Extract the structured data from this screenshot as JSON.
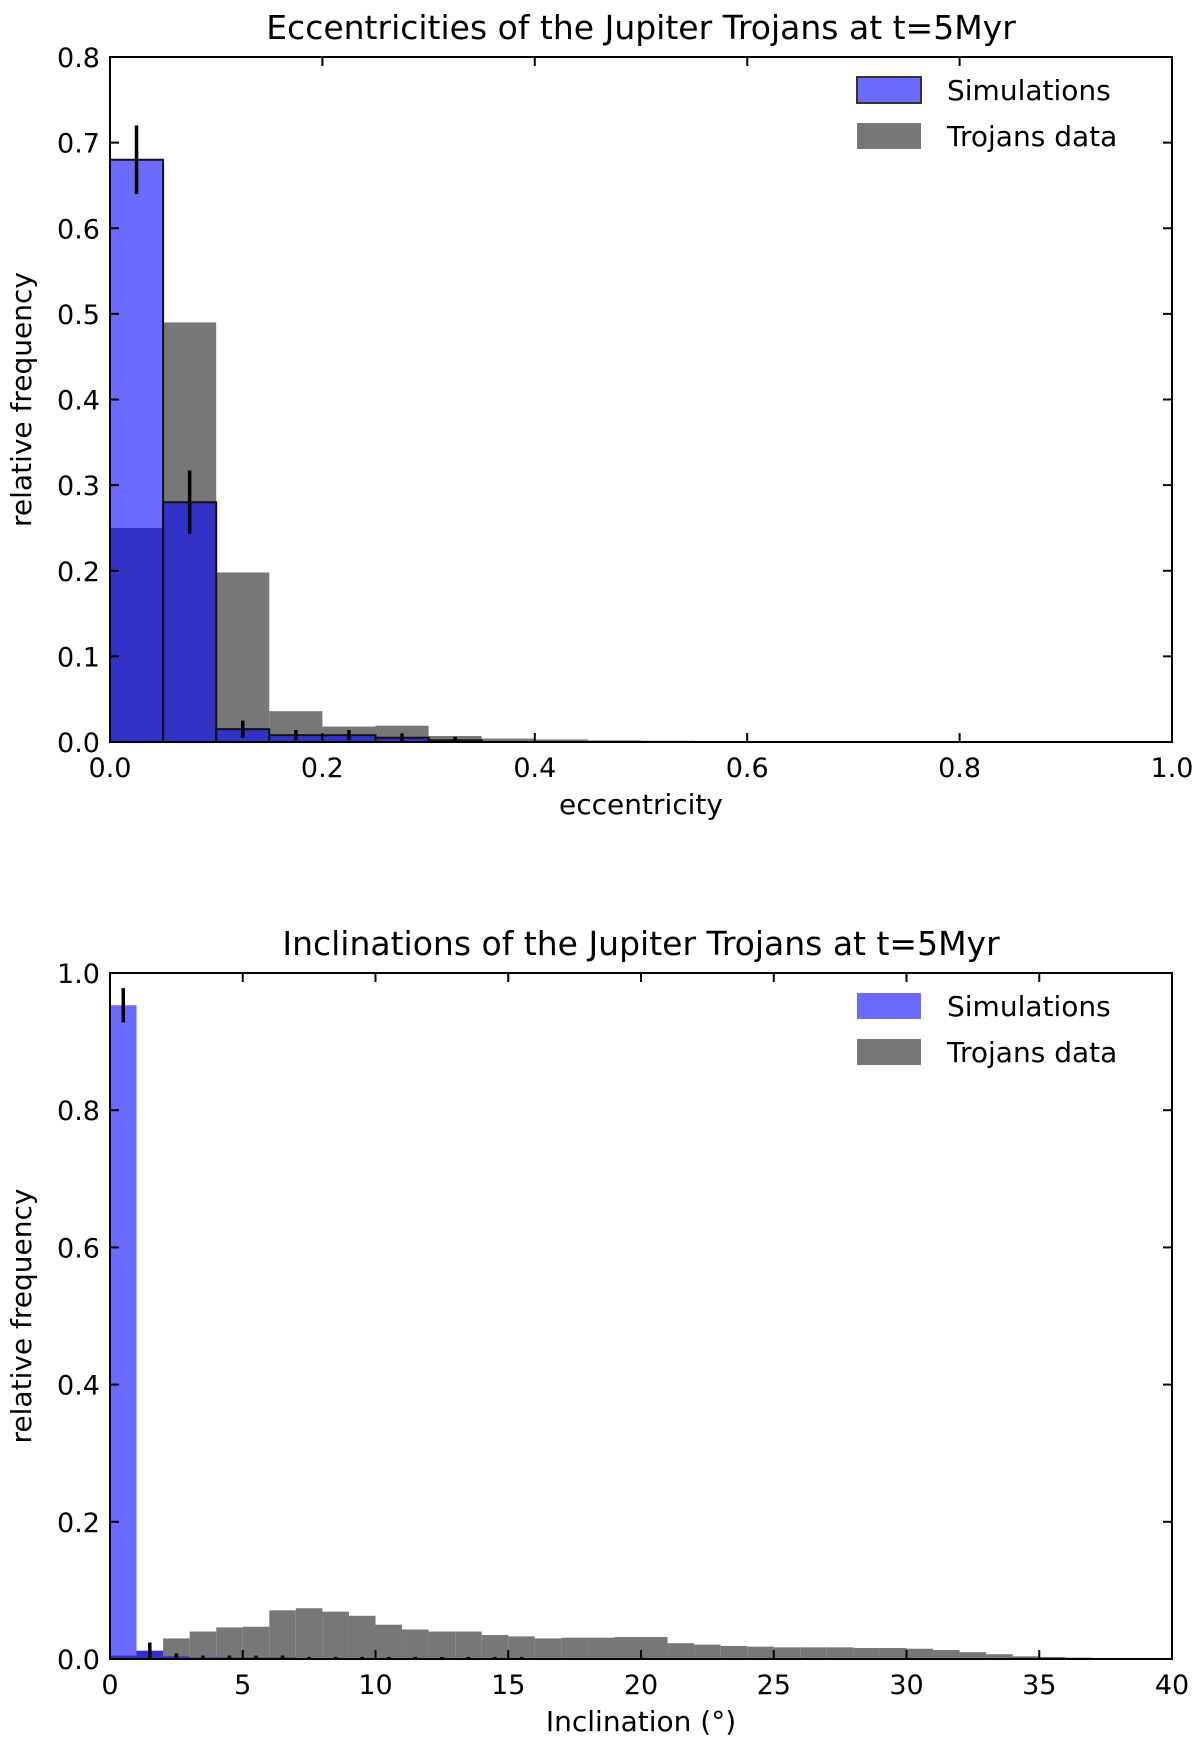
{
  "chart_data": [
    {
      "type": "bar",
      "title": "Eccentricities of the Jupiter Trojans at t=5Myr",
      "xlabel": "eccentricity",
      "ylabel": "relative frequency",
      "xlim": [
        0,
        1.0
      ],
      "ylim": [
        0,
        0.8
      ],
      "xticks": [
        "0.0",
        "0.2",
        "0.4",
        "0.6",
        "0.8",
        "1.0"
      ],
      "yticks": [
        "0.0",
        "0.1",
        "0.2",
        "0.3",
        "0.4",
        "0.5",
        "0.6",
        "0.7",
        "0.8"
      ],
      "grid": false,
      "legend_position": "top-right",
      "bin_width": 0.05,
      "bin_starts": [
        0.0,
        0.05,
        0.1,
        0.15,
        0.2,
        0.25,
        0.3,
        0.35,
        0.4,
        0.45,
        0.5,
        0.55,
        0.6,
        0.65
      ],
      "series": [
        {
          "name": "Simulations",
          "color": "#6a6aff",
          "values": [
            0.68,
            0.28,
            0.015,
            0.008,
            0.008,
            0.005,
            0.002,
            0,
            0,
            0,
            0,
            0,
            0,
            0
          ],
          "error_bars": [
            0.04,
            0.037,
            0.01,
            0.006,
            0.006,
            0.005,
            0.004,
            0,
            0,
            0,
            0,
            0,
            0,
            0
          ]
        },
        {
          "name": "Trojans data",
          "color": "#777777",
          "values": [
            0.25,
            0.49,
            0.198,
            0.036,
            0.018,
            0.019,
            0.007,
            0.004,
            0.003,
            0.002,
            0.0015,
            0.001,
            0.0008,
            0.0005
          ]
        }
      ]
    },
    {
      "type": "bar",
      "title": "Inclinations of the Jupiter Trojans at t=5Myr",
      "xlabel": "Inclination (°)",
      "ylabel": "relative frequency",
      "xlim": [
        0,
        40
      ],
      "ylim": [
        0,
        1.0
      ],
      "xticks": [
        "0",
        "5",
        "10",
        "15",
        "20",
        "25",
        "30",
        "35",
        "40"
      ],
      "yticks": [
        "0.0",
        "0.2",
        "0.4",
        "0.6",
        "0.8",
        "1.0"
      ],
      "grid": false,
      "legend_position": "top-right",
      "bin_width": 1,
      "bin_starts": [
        0,
        1,
        2,
        3,
        4,
        5,
        6,
        7,
        8,
        9,
        10,
        11,
        12,
        13,
        14,
        15,
        16,
        17,
        18,
        19,
        20,
        21,
        22,
        23,
        24,
        25,
        26,
        27,
        28,
        29,
        30,
        31,
        32,
        33,
        34,
        35,
        36,
        37,
        38,
        39
      ],
      "series": [
        {
          "name": "Simulations",
          "color": "#6a6aff",
          "values": [
            0.953,
            0.012,
            0.004,
            0.002,
            0.002,
            0.002,
            0.002,
            0.001,
            0.001,
            0.001,
            0.001,
            0.001,
            0.001,
            0.001,
            0.001,
            0.001,
            0,
            0,
            0,
            0,
            0,
            0,
            0,
            0,
            0,
            0,
            0,
            0,
            0,
            0,
            0,
            0,
            0,
            0,
            0,
            0,
            0,
            0,
            0,
            0
          ],
          "error_bars": [
            0.025,
            0.012,
            0.004,
            0.003,
            0.003,
            0.003,
            0.003,
            0.002,
            0.002,
            0.002,
            0.002,
            0.002,
            0.002,
            0.002,
            0.002,
            0.002,
            0,
            0,
            0,
            0,
            0,
            0,
            0,
            0,
            0,
            0,
            0,
            0,
            0,
            0,
            0,
            0,
            0,
            0,
            0,
            0,
            0,
            0,
            0,
            0
          ]
        },
        {
          "name": "Trojans data",
          "color": "#777777",
          "values": [
            0.005,
            0.012,
            0.03,
            0.04,
            0.046,
            0.047,
            0.071,
            0.074,
            0.069,
            0.063,
            0.05,
            0.043,
            0.04,
            0.04,
            0.035,
            0.033,
            0.03,
            0.031,
            0.031,
            0.032,
            0.032,
            0.023,
            0.021,
            0.019,
            0.018,
            0.017,
            0.017,
            0.017,
            0.016,
            0.016,
            0.015,
            0.013,
            0.01,
            0.007,
            0.004,
            0.003,
            0.002,
            0.001,
            0.001,
            0.0005
          ]
        }
      ]
    }
  ]
}
